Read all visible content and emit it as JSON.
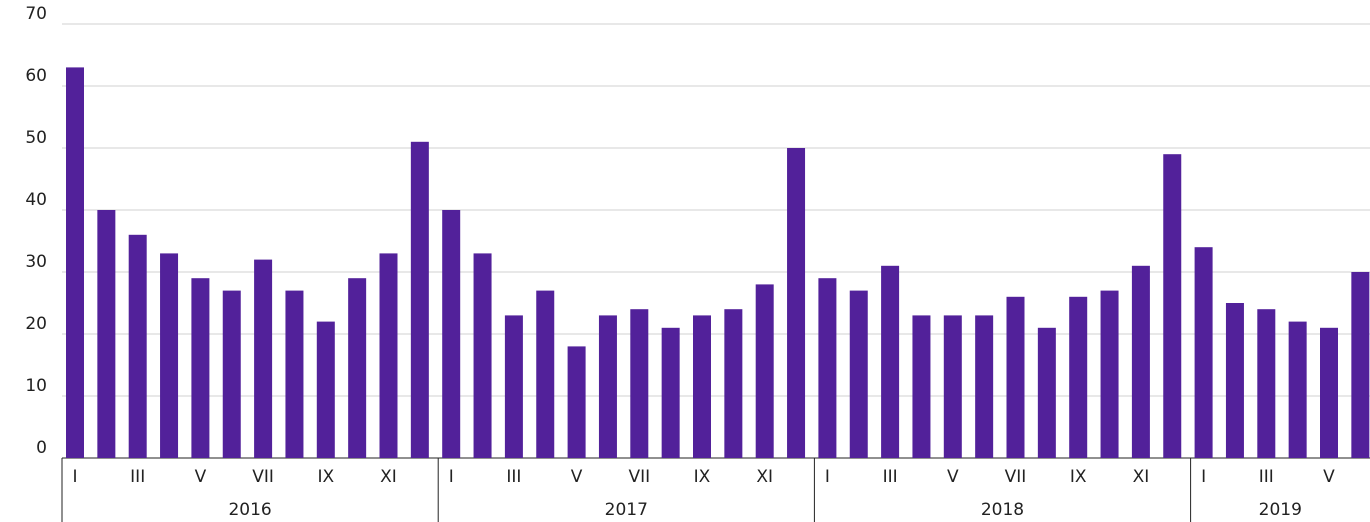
{
  "chart_data": {
    "type": "bar",
    "color": "#52219a",
    "grid": true,
    "ylim": [
      0,
      70
    ],
    "yticks": [
      0,
      10,
      20,
      30,
      40,
      50,
      60,
      70
    ],
    "categories": [
      "I",
      null,
      "III",
      null,
      "V",
      null,
      "VII",
      null,
      "IX",
      null,
      "XI",
      null,
      "I",
      null,
      "III",
      null,
      "V",
      null,
      "VII",
      null,
      "IX",
      null,
      "XI",
      null,
      "I",
      null,
      "III",
      null,
      "V",
      null,
      "VII",
      null,
      "IX",
      null,
      "XI",
      null,
      "I",
      null,
      "III",
      null,
      "V",
      null
    ],
    "groups": [
      "2016",
      "2017",
      "2018",
      "2019"
    ],
    "values": [
      63,
      40,
      36,
      33,
      29,
      27,
      32,
      27,
      22,
      29,
      33,
      51,
      40,
      33,
      23,
      27,
      18,
      23,
      24,
      21,
      23,
      24,
      28,
      50,
      29,
      27,
      31,
      23,
      23,
      23,
      26,
      21,
      26,
      27,
      31,
      49,
      34,
      25,
      24,
      22,
      21,
      30
    ]
  }
}
